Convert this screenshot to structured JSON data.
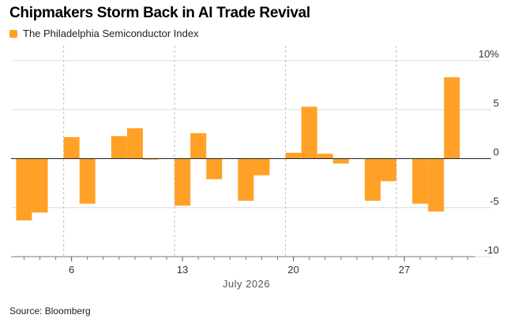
{
  "title": "Chipmakers Storm Back in AI Trade Revival",
  "source": "Source: Bloomberg",
  "colors": {
    "bar": "#ffa126",
    "grid": "#dcdcdc",
    "zero": "#222222",
    "divider": "#bdbdbd"
  },
  "chart_data": {
    "type": "bar",
    "title": "Chipmakers Storm Back in AI Trade Revival",
    "legend": "top-left",
    "grid": true,
    "xlabel": "July 2026",
    "ylabel": "",
    "ylim": [
      -10,
      10
    ],
    "x_range": [
      2,
      33
    ],
    "yticks": [
      {
        "value": 10,
        "label": "10%"
      },
      {
        "value": 5,
        "label": "5"
      },
      {
        "value": 0,
        "label": "0"
      },
      {
        "value": -5,
        "label": "-5"
      },
      {
        "value": -10,
        "label": "-10"
      }
    ],
    "xticks": [
      {
        "value": 6,
        "label": "6"
      },
      {
        "value": 13,
        "label": "13"
      },
      {
        "value": 20,
        "label": "20"
      },
      {
        "value": 27,
        "label": "27"
      }
    ],
    "week_dividers": [
      5.5,
      12.5,
      19.5,
      26.5
    ],
    "minor_ticks": [
      3,
      4,
      5,
      7,
      8,
      9,
      10,
      11,
      12,
      14,
      15,
      16,
      17,
      18,
      19,
      21,
      22,
      23,
      24,
      25,
      26,
      28,
      29,
      30,
      31
    ],
    "series": [
      {
        "name": "The Philadelphia Semiconductor Index",
        "x": [
          3,
          4,
          6,
          7,
          8,
          9,
          10,
          11,
          12,
          13,
          14,
          15,
          16,
          17,
          19,
          20,
          21,
          22,
          23,
          24,
          25,
          26,
          27,
          28
        ],
        "values": [
          -6.3,
          -5.5,
          2.2,
          -4.6,
          2.3,
          3.1,
          -0.1,
          -4.8,
          2.6,
          -2.1,
          -4.3,
          -1.7,
          0.6,
          5.3,
          0.5,
          -0.5,
          -4.3,
          -2.3,
          -4.6,
          -5.4,
          8.3,
          0,
          0,
          0
        ]
      }
    ]
  }
}
